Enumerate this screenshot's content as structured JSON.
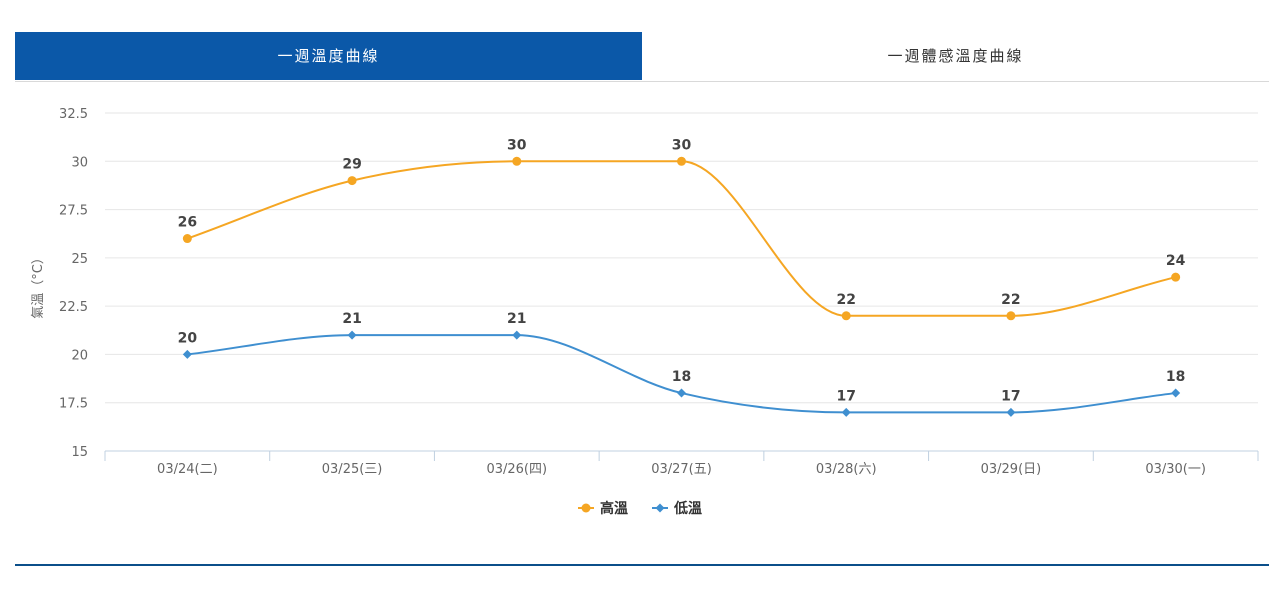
{
  "tabs": [
    {
      "label": "一週溫度曲線",
      "active": true
    },
    {
      "label": "一週體感溫度曲線",
      "active": false
    }
  ],
  "chart_data": {
    "type": "line",
    "smooth": true,
    "categories": [
      "03/24(二)",
      "03/25(三)",
      "03/26(四)",
      "03/27(五)",
      "03/28(六)",
      "03/29(日)",
      "03/30(一)"
    ],
    "series": [
      {
        "name": "高溫",
        "color": "#f5a623",
        "marker": "circle",
        "values": [
          26,
          29,
          30,
          30,
          22,
          22,
          24
        ]
      },
      {
        "name": "低溫",
        "color": "#3f8fd0",
        "marker": "diamond",
        "values": [
          20,
          21,
          21,
          18,
          17,
          17,
          18
        ]
      }
    ],
    "ylabel": "氣溫（°C）",
    "ylim": [
      15,
      32.5
    ],
    "yticks": [
      "15",
      "17.5",
      "20",
      "22.5",
      "25",
      "27.5",
      "30",
      "32.5"
    ],
    "grid": true,
    "legend": "bottom-center",
    "data_labels": true
  }
}
